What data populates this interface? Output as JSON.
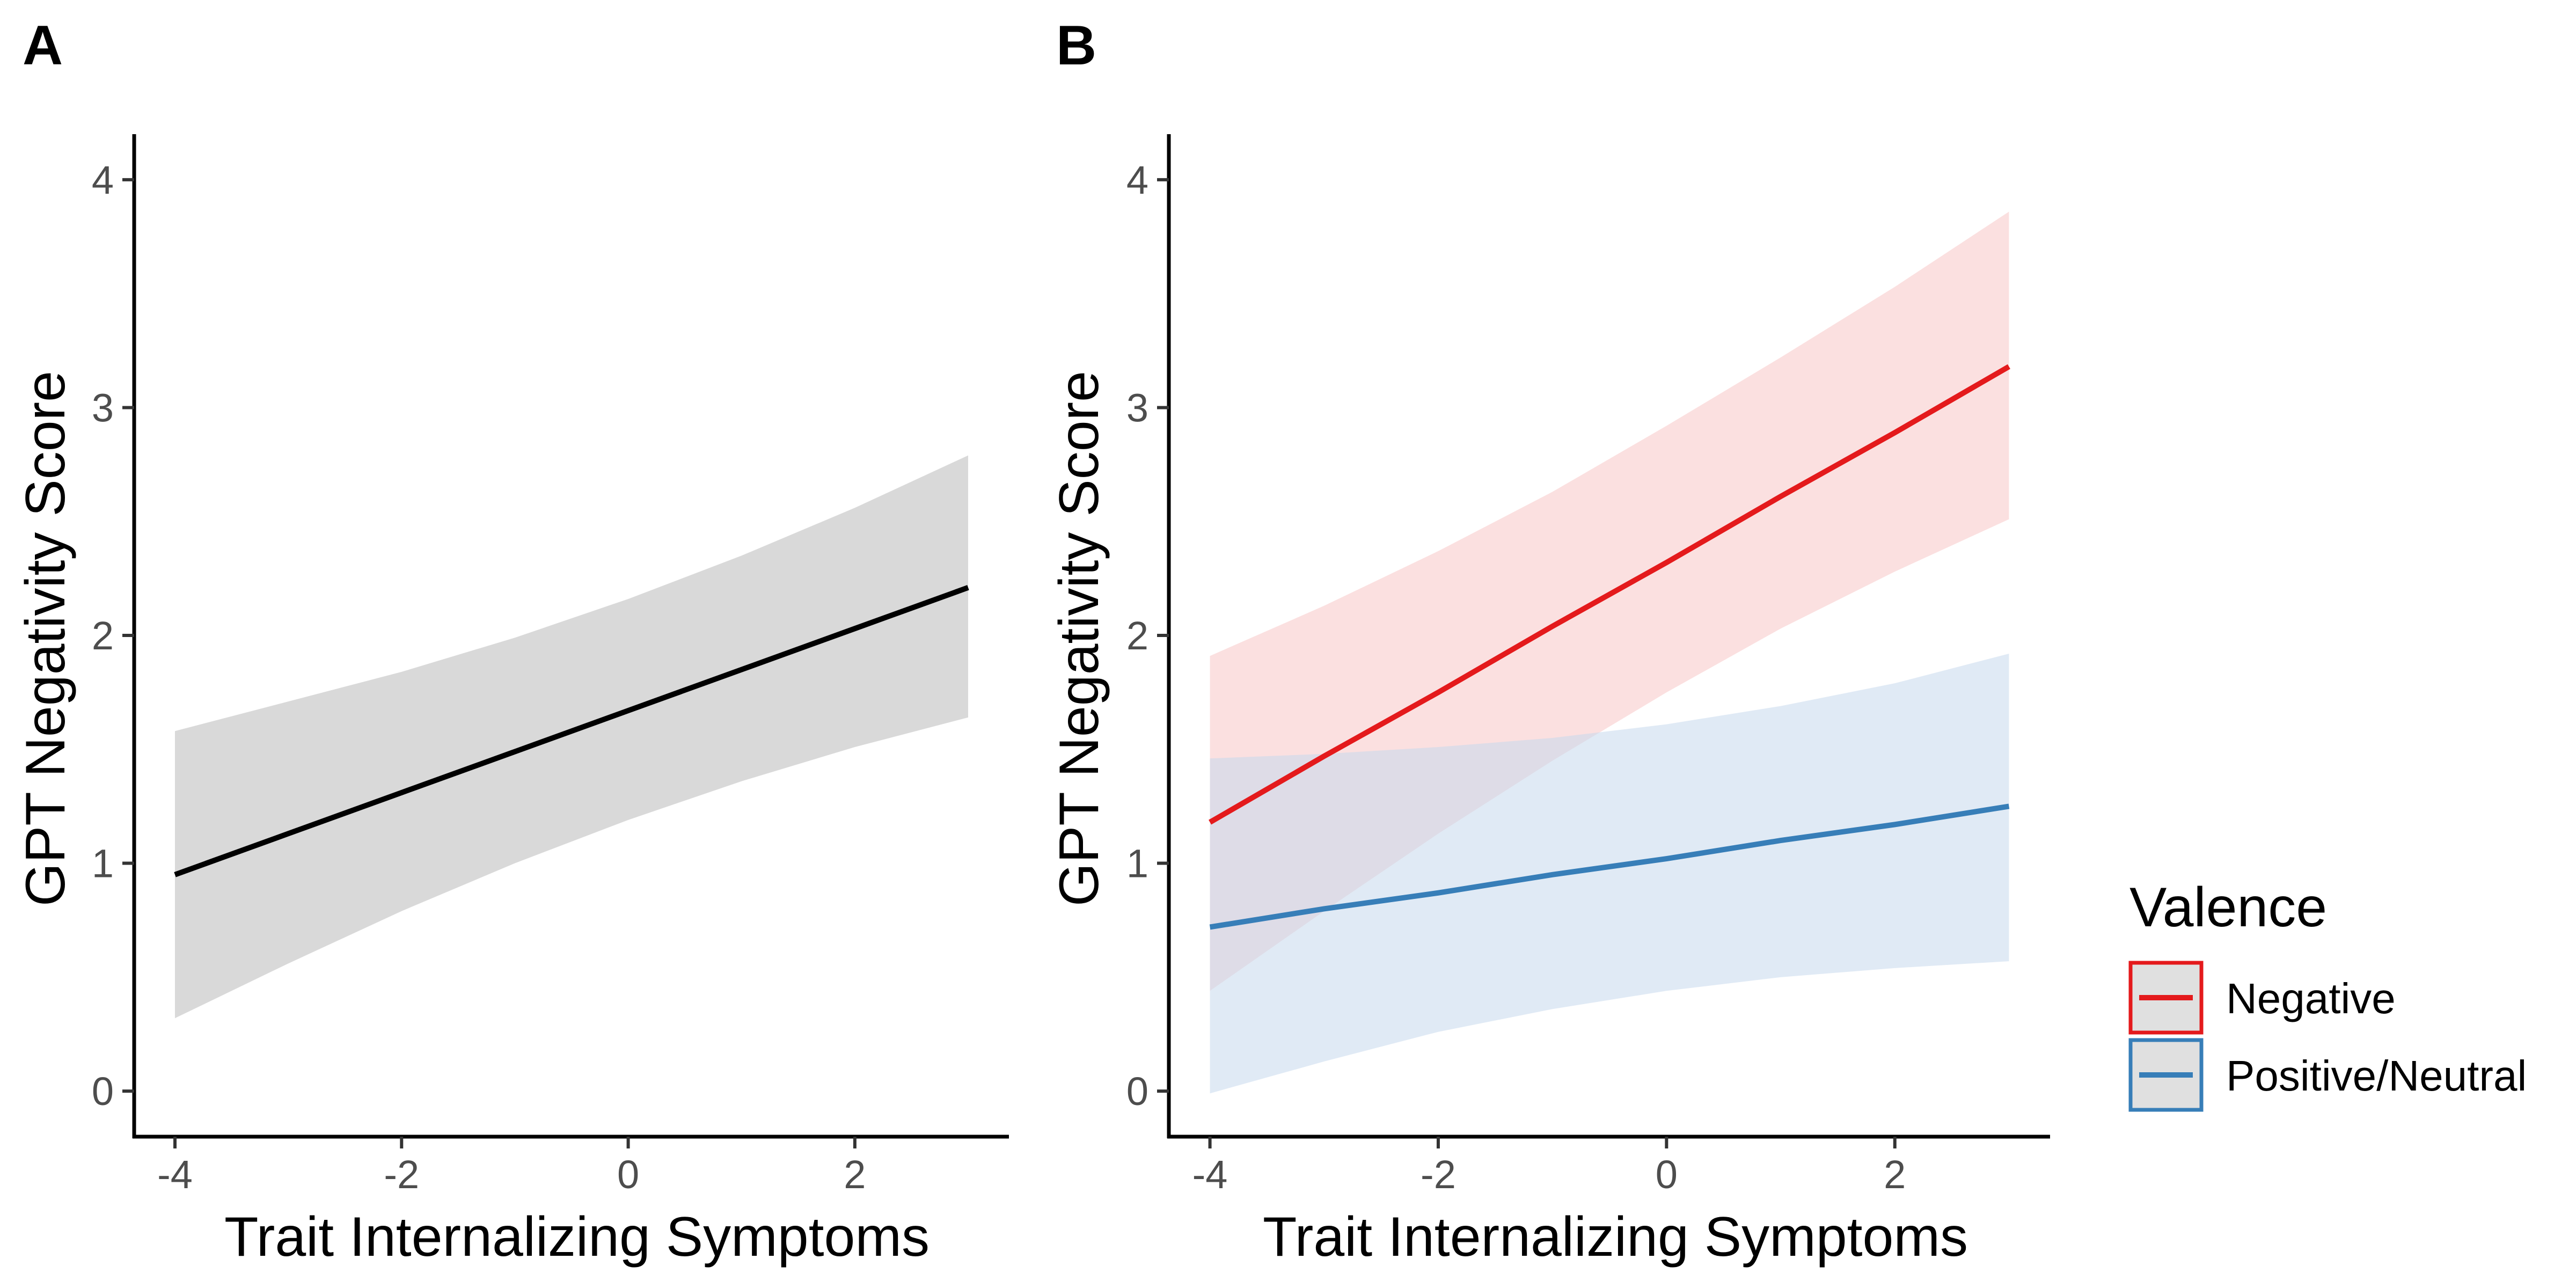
{
  "chart_data": [
    {
      "type": "line",
      "panel_label": "A",
      "xlabel": "Trait Internalizing Symptoms",
      "ylabel": "GPT Negativity Score",
      "xlim": [
        -4.36,
        3.36
      ],
      "ylim": [
        -0.2,
        4.2
      ],
      "x_ticks": [
        -4,
        -2,
        0,
        2
      ],
      "y_ticks": [
        0,
        1,
        2,
        3,
        4
      ],
      "grid": false,
      "legend": "none",
      "series": [
        {
          "color": "#000000",
          "band_color": "#d9d9d9",
          "x": [
            -4,
            -3,
            -2,
            -1,
            0,
            1,
            2,
            3
          ],
          "y": [
            0.95,
            1.13,
            1.31,
            1.49,
            1.67,
            1.85,
            2.03,
            2.21
          ],
          "lower": [
            0.32,
            0.56,
            0.79,
            1.0,
            1.19,
            1.36,
            1.51,
            1.64
          ],
          "upper": [
            1.58,
            1.71,
            1.84,
            1.99,
            2.16,
            2.35,
            2.56,
            2.79
          ]
        }
      ]
    },
    {
      "type": "line",
      "panel_label": "B",
      "xlabel": "Trait Internalizing Symptoms",
      "ylabel": "GPT Negativity Score",
      "xlim": [
        -4.36,
        3.36
      ],
      "ylim": [
        -0.2,
        4.2
      ],
      "x_ticks": [
        -4,
        -2,
        0,
        2
      ],
      "y_ticks": [
        0,
        1,
        2,
        3,
        4
      ],
      "grid": false,
      "legend": "right",
      "legend_title": "Valence",
      "series": [
        {
          "name": "Negative",
          "color": "#e41a1c",
          "band_color": "#f8c6c6",
          "x": [
            -4,
            -3,
            -2,
            -1,
            0,
            1,
            2,
            3
          ],
          "y": [
            1.18,
            1.47,
            1.75,
            2.04,
            2.32,
            2.61,
            2.89,
            3.18
          ],
          "lower": [
            0.44,
            0.79,
            1.13,
            1.45,
            1.75,
            2.03,
            2.28,
            2.51
          ],
          "upper": [
            1.91,
            2.13,
            2.37,
            2.63,
            2.92,
            3.22,
            3.53,
            3.86
          ]
        },
        {
          "name": "Positive/Neutral",
          "color": "#377eb8",
          "band_color": "#c6d8ec",
          "x": [
            -4,
            -3,
            -2,
            -1,
            0,
            1,
            2,
            3
          ],
          "y": [
            0.72,
            0.8,
            0.87,
            0.95,
            1.02,
            1.1,
            1.17,
            1.25
          ],
          "lower": [
            -0.01,
            0.13,
            0.26,
            0.36,
            0.44,
            0.5,
            0.54,
            0.57
          ],
          "upper": [
            1.46,
            1.48,
            1.51,
            1.55,
            1.61,
            1.69,
            1.79,
            1.92
          ]
        }
      ]
    }
  ]
}
